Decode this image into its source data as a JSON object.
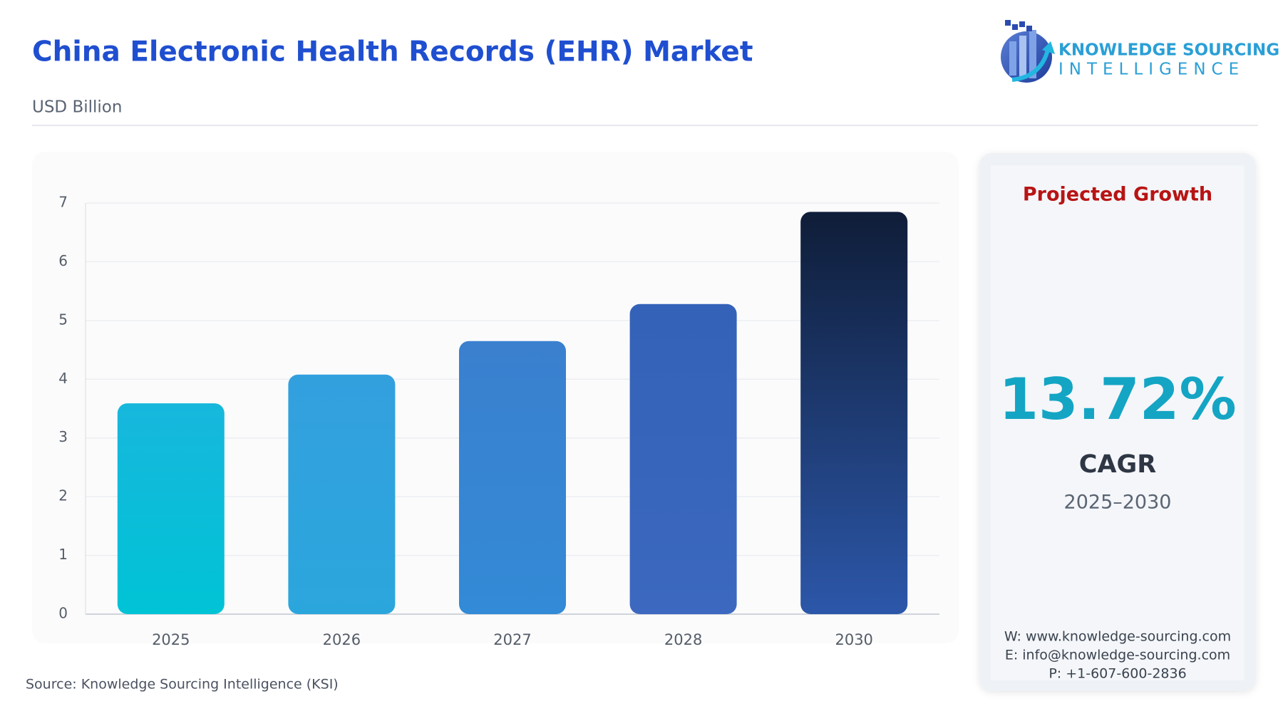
{
  "chart_data": {
    "type": "bar",
    "title": "China Electronic Health Records (EHR) Market",
    "subtitle": "USD Billion",
    "categories": [
      "2025",
      "2026",
      "2027",
      "2028",
      "2030"
    ],
    "values": [
      3.59,
      4.08,
      4.65,
      5.28,
      6.85
    ],
    "colors": [
      [
        "#17b7dc",
        "#00c3d6"
      ],
      [
        "#33a0de",
        "#2ba6dd"
      ],
      [
        "#3a80cf",
        "#338ad6"
      ],
      [
        "#3462b8",
        "#3c68c0"
      ],
      [
        "#0f1d38",
        "#2c57a9"
      ]
    ],
    "ylim": [
      0,
      7
    ],
    "yticks": [
      0,
      1,
      2,
      3,
      4,
      5,
      6,
      7
    ],
    "grid": true
  },
  "source": "Source: Knowledge Sourcing Intelligence (KSI)",
  "logo": {
    "line1": "KNOWLEDGE SOURCING",
    "line2": "INTELLIGENCE"
  },
  "panel": {
    "heading": "Projected Growth",
    "cagr_value": "13.72%",
    "cagr_label": "CAGR",
    "period": "2025–2030",
    "contact": [
      "W: www.knowledge-sourcing.com",
      "E: info@knowledge-sourcing.com",
      "P: +1-607-600-2836"
    ]
  }
}
